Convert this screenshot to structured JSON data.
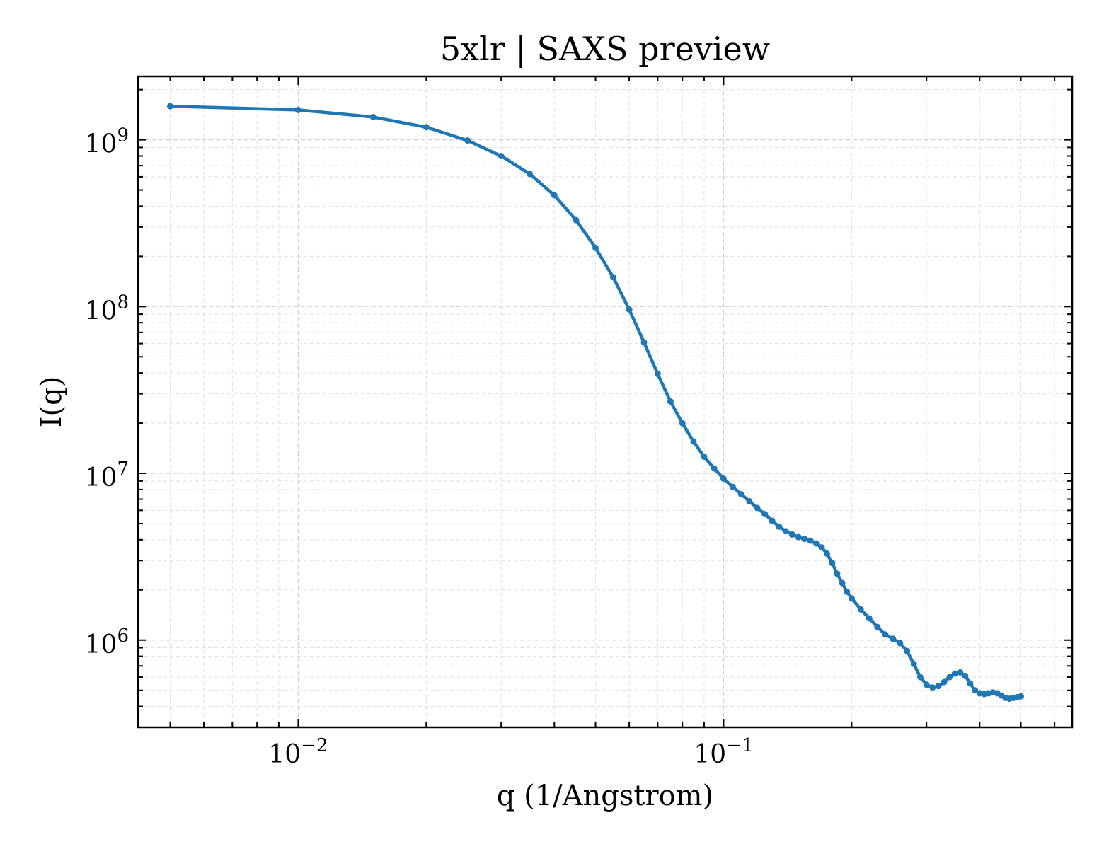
{
  "chart_data": {
    "type": "line",
    "title": "5xlr | SAXS preview",
    "xlabel": "q (1/Angstrom)",
    "ylabel": "I(q)",
    "xscale": "log",
    "yscale": "log",
    "xlim": [
      0.0042,
      0.66
    ],
    "ylim": [
      300000,
      2400000000
    ],
    "grid": true,
    "line_color": "#1f77b4",
    "x_ticks": [
      {
        "value": 0.01,
        "base": "10",
        "exp": "−2"
      },
      {
        "value": 0.1,
        "base": "10",
        "exp": "−1"
      }
    ],
    "y_ticks": [
      {
        "value": 1000000,
        "base": "10",
        "exp": "6"
      },
      {
        "value": 10000000,
        "base": "10",
        "exp": "7"
      },
      {
        "value": 100000000,
        "base": "10",
        "exp": "8"
      },
      {
        "value": 1000000000,
        "base": "10",
        "exp": "9"
      }
    ],
    "series": [
      {
        "x": [
          0.005,
          0.01,
          0.015,
          0.02,
          0.025,
          0.03,
          0.035,
          0.04,
          0.045,
          0.05,
          0.055,
          0.06,
          0.065,
          0.07,
          0.075,
          0.08,
          0.085,
          0.09,
          0.095,
          0.1,
          0.105,
          0.11,
          0.115,
          0.12,
          0.125,
          0.13,
          0.135,
          0.14,
          0.145,
          0.15,
          0.155,
          0.16,
          0.165,
          0.17,
          0.175,
          0.18,
          0.185,
          0.19,
          0.195,
          0.2,
          0.21,
          0.22,
          0.23,
          0.24,
          0.25,
          0.26,
          0.27,
          0.28,
          0.29,
          0.3,
          0.31,
          0.32,
          0.33,
          0.34,
          0.35,
          0.36,
          0.37,
          0.38,
          0.39,
          0.4,
          0.41,
          0.42,
          0.43,
          0.44,
          0.45,
          0.46,
          0.47,
          0.48,
          0.49,
          0.5
        ],
        "y": [
          1590000000,
          1510000000,
          1370000000,
          1190000000,
          990000000,
          800000000,
          625000000,
          465000000,
          330000000,
          225000000,
          150000000,
          96000000,
          61000000,
          39500000,
          27000000,
          20000000,
          15500000,
          12600000,
          10700000,
          9300000,
          8300000,
          7500000,
          6800000,
          6200000,
          5700000,
          5200000,
          4800000,
          4500000,
          4300000,
          4150000,
          4050000,
          3950000,
          3800000,
          3600000,
          3300000,
          2900000,
          2500000,
          2200000,
          1950000,
          1780000,
          1530000,
          1350000,
          1200000,
          1080000,
          1020000,
          960000,
          860000,
          720000,
          600000,
          540000,
          520000,
          530000,
          560000,
          600000,
          630000,
          640000,
          610000,
          550000,
          500000,
          480000,
          475000,
          480000,
          485000,
          480000,
          465000,
          450000,
          445000,
          450000,
          455000,
          460000
        ]
      }
    ]
  }
}
